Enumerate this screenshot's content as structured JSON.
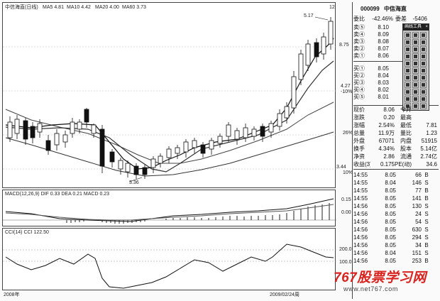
{
  "main_chart": {
    "title": "中信海直(日线)",
    "ma_labels": [
      "MA5 4.81",
      "MA10 4.42",
      "MA20 4.00",
      "MA60 3.73"
    ],
    "price_labels": [
      "8.75",
      "4.27",
      "3.44"
    ],
    "percent_labels": [
      "-10%",
      "26%",
      "10%"
    ],
    "high_label": "5.17",
    "low_label": "3.36",
    "latest_tag": "12"
  },
  "macd_panel": {
    "title": "MACD(12,26,9) DIF 0.33 DEA 0.21 MACD 0.23",
    "scale": [
      "0.15",
      "0.00"
    ]
  },
  "cci_panel": {
    "title": "CCI(14) CCI 122.50",
    "scale": [
      "200.0",
      "100.0"
    ]
  },
  "date_axis": {
    "left": "2008年",
    "right": "2009/02/24周"
  },
  "quote": {
    "code": "000099",
    "name": "中信海直",
    "weibi_label": "委比",
    "weibi_value": "-42.46%",
    "weicha_label": "委差",
    "weicha_value": "-5406",
    "sell": [
      {
        "label": "卖⑤",
        "price": "8.10"
      },
      {
        "label": "卖④",
        "price": "8.09"
      },
      {
        "label": "卖③",
        "price": "8.08"
      },
      {
        "label": "卖②",
        "price": "8.07"
      },
      {
        "label": "卖①",
        "price": "8.06"
      }
    ],
    "buy": [
      {
        "label": "买①",
        "price": "8.05"
      },
      {
        "label": "买②",
        "price": "8.04"
      },
      {
        "label": "买③",
        "price": "8.03"
      },
      {
        "label": "买④",
        "price": "8.02"
      },
      {
        "label": "买⑤",
        "price": "8.01"
      }
    ],
    "stats": [
      {
        "l1": "现价",
        "v1": "8.06",
        "l2": "今开",
        "v2": ""
      },
      {
        "l1": "涨跌",
        "v1": "0.20",
        "l2": "最高",
        "v2": ""
      },
      {
        "l1": "涨幅",
        "v1": "2.54%",
        "l2": "最低",
        "v2": "7.81"
      },
      {
        "l1": "总量",
        "v1": "11.9万",
        "l2": "量比",
        "v2": "1.23"
      },
      {
        "l1": "外盘",
        "v1": "67071",
        "l2": "内盘",
        "v2": "51915"
      },
      {
        "l1": "换手",
        "v1": "4.34%",
        "l2": "股本",
        "v2": "5.14亿"
      },
      {
        "l1": "净资",
        "v1": "2.86",
        "l2": "流通",
        "v2": "2.74亿"
      },
      {
        "l1": "收益(3)",
        "v1": "0.175",
        "l2": "PE(动)",
        "v2": "34.6"
      }
    ]
  },
  "ticks": [
    {
      "time": "14:55",
      "price": "8.05",
      "vol": "66",
      "side": "B"
    },
    {
      "time": "14:55",
      "price": "8.04",
      "vol": "146",
      "side": "S"
    },
    {
      "time": "14:55",
      "price": "8.05",
      "vol": "77",
      "side": "B"
    },
    {
      "time": "14:55",
      "price": "8.05",
      "vol": "141",
      "side": "B"
    },
    {
      "time": "14:56",
      "price": "8.05",
      "vol": "130",
      "side": "S"
    },
    {
      "time": "14:56",
      "price": "8.05",
      "vol": "24",
      "side": "S"
    },
    {
      "time": "14:56",
      "price": "8.05",
      "vol": "54",
      "side": "S"
    },
    {
      "time": "14:56",
      "price": "8.05",
      "vol": "630",
      "side": "S"
    },
    {
      "time": "14:56",
      "price": "8.05",
      "vol": "294",
      "side": "S"
    },
    {
      "time": "14:56",
      "price": "8.05",
      "vol": "34",
      "side": "B"
    },
    {
      "time": "14:56",
      "price": "8.04",
      "vol": "151",
      "side": "S"
    },
    {
      "time": "14:56",
      "price": "8.05",
      "vol": "253",
      "side": "B"
    }
  ],
  "watermark": {
    "brand": "767股票学习网",
    "url": "www.net767.com"
  },
  "toolbar": {
    "title": "画线工具",
    "close": "×"
  },
  "colors": {
    "background": "#fafafa",
    "ink": "#111111",
    "watermark_red": "#d8231f",
    "toolbar_bg": "#c9c9c9"
  }
}
